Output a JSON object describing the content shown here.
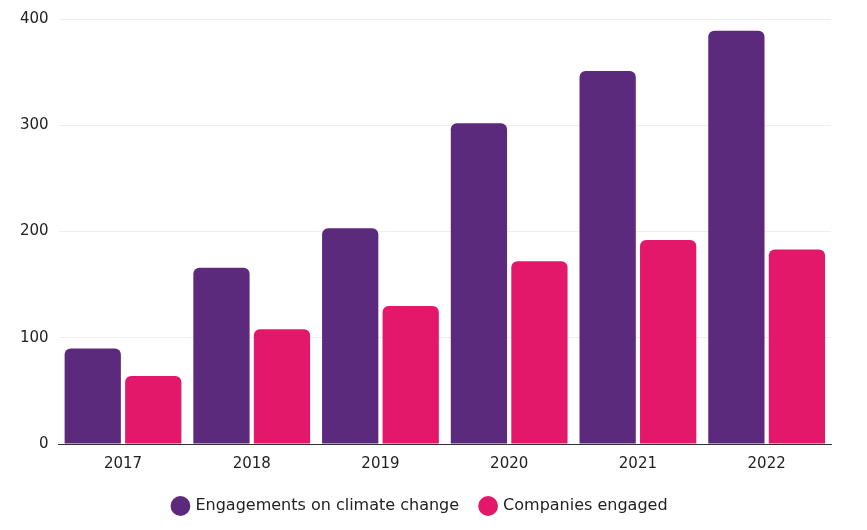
{
  "chart_data": {
    "type": "bar",
    "categories": [
      "2017",
      "2018",
      "2019",
      "2020",
      "2021",
      "2022"
    ],
    "series": [
      {
        "name": "Engagements on climate change",
        "color": "#5c2a7c",
        "values": [
          90,
          166,
          203,
          302,
          351,
          389
        ]
      },
      {
        "name": "Companies engaged",
        "color": "#e3186a",
        "values": [
          64,
          108,
          130,
          172,
          192,
          183
        ]
      }
    ],
    "ylim": [
      0,
      400
    ],
    "yticks": [
      0,
      100,
      200,
      300,
      400
    ],
    "grid": true,
    "legend": "bottom"
  }
}
